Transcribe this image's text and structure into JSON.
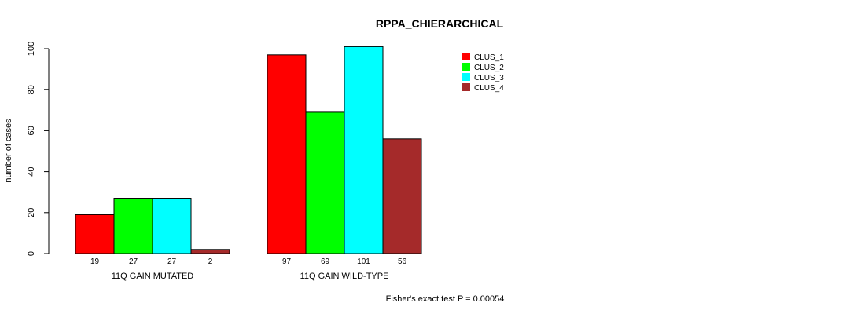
{
  "chart_data": {
    "type": "bar",
    "title": "RPPA_CHIERARCHICAL",
    "ylabel": "number of cases",
    "xlabel": "",
    "ylim": [
      0,
      100
    ],
    "yticks": [
      0,
      20,
      40,
      60,
      80,
      100
    ],
    "categories": [
      "11Q GAIN MUTATED",
      "11Q GAIN WILD-TYPE"
    ],
    "series": [
      {
        "name": "CLUS_1",
        "color": "#ff0000",
        "values": [
          19,
          97
        ]
      },
      {
        "name": "CLUS_2",
        "color": "#00ff00",
        "values": [
          27,
          69
        ]
      },
      {
        "name": "CLUS_3",
        "color": "#00ffff",
        "values": [
          27,
          101
        ]
      },
      {
        "name": "CLUS_4",
        "color": "#a52a2a",
        "values": [
          2,
          56
        ]
      }
    ],
    "legend_position": "top-right",
    "grid": false,
    "footnote": "Fisher's exact test P = 0.00054"
  }
}
